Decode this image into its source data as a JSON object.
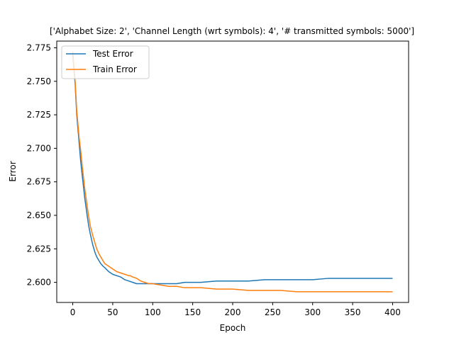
{
  "chart_data": {
    "type": "line",
    "title": "['Alphabet Size: 2', 'Channel Length (wrt symbols): 4', '# transmitted symbols: 5000']",
    "xlabel": "Epoch",
    "ylabel": "Error",
    "xlim": [
      -20,
      420
    ],
    "ylim": [
      2.585,
      2.78
    ],
    "xticks": [
      0,
      50,
      100,
      150,
      200,
      250,
      300,
      350,
      400
    ],
    "yticks": [
      2.6,
      2.625,
      2.65,
      2.675,
      2.7,
      2.725,
      2.75,
      2.775
    ],
    "ytick_labels": [
      "2.600",
      "2.625",
      "2.650",
      "2.675",
      "2.700",
      "2.725",
      "2.750",
      "2.775"
    ],
    "legend": "top-left",
    "grid": false,
    "series": [
      {
        "name": "Test Error",
        "color": "#1f77b4",
        "x": [
          0,
          3,
          5,
          8,
          10,
          12,
          15,
          18,
          20,
          22,
          25,
          28,
          30,
          33,
          35,
          38,
          40,
          45,
          50,
          55,
          60,
          65,
          70,
          75,
          80,
          85,
          90,
          95,
          100,
          110,
          120,
          130,
          140,
          150,
          160,
          180,
          200,
          220,
          240,
          260,
          280,
          300,
          320,
          340,
          360,
          380,
          400
        ],
        "y": [
          2.77,
          2.748,
          2.725,
          2.704,
          2.69,
          2.679,
          2.663,
          2.65,
          2.642,
          2.636,
          2.628,
          2.622,
          2.619,
          2.616,
          2.614,
          2.612,
          2.611,
          2.608,
          2.606,
          2.605,
          2.604,
          2.602,
          2.601,
          2.6,
          2.599,
          2.599,
          2.599,
          2.599,
          2.599,
          2.599,
          2.599,
          2.599,
          2.6,
          2.6,
          2.6,
          2.601,
          2.601,
          2.601,
          2.602,
          2.602,
          2.602,
          2.602,
          2.603,
          2.603,
          2.603,
          2.603,
          2.603
        ]
      },
      {
        "name": "Train Error",
        "color": "#ff7f0e",
        "x": [
          0,
          3,
          5,
          8,
          10,
          12,
          15,
          18,
          20,
          22,
          25,
          28,
          30,
          33,
          35,
          38,
          40,
          45,
          50,
          55,
          60,
          65,
          70,
          72,
          75,
          80,
          85,
          90,
          95,
          100,
          110,
          120,
          130,
          140,
          150,
          160,
          180,
          200,
          220,
          240,
          260,
          280,
          300,
          320,
          340,
          360,
          380,
          400
        ],
        "y": [
          2.772,
          2.75,
          2.728,
          2.708,
          2.698,
          2.686,
          2.67,
          2.657,
          2.649,
          2.642,
          2.635,
          2.629,
          2.625,
          2.621,
          2.619,
          2.616,
          2.614,
          2.612,
          2.61,
          2.608,
          2.607,
          2.606,
          2.605,
          2.605,
          2.604,
          2.603,
          2.601,
          2.6,
          2.599,
          2.599,
          2.598,
          2.597,
          2.597,
          2.596,
          2.596,
          2.596,
          2.595,
          2.595,
          2.594,
          2.594,
          2.594,
          2.593,
          2.593,
          2.593,
          2.593,
          2.593,
          2.593,
          2.593
        ]
      }
    ]
  }
}
